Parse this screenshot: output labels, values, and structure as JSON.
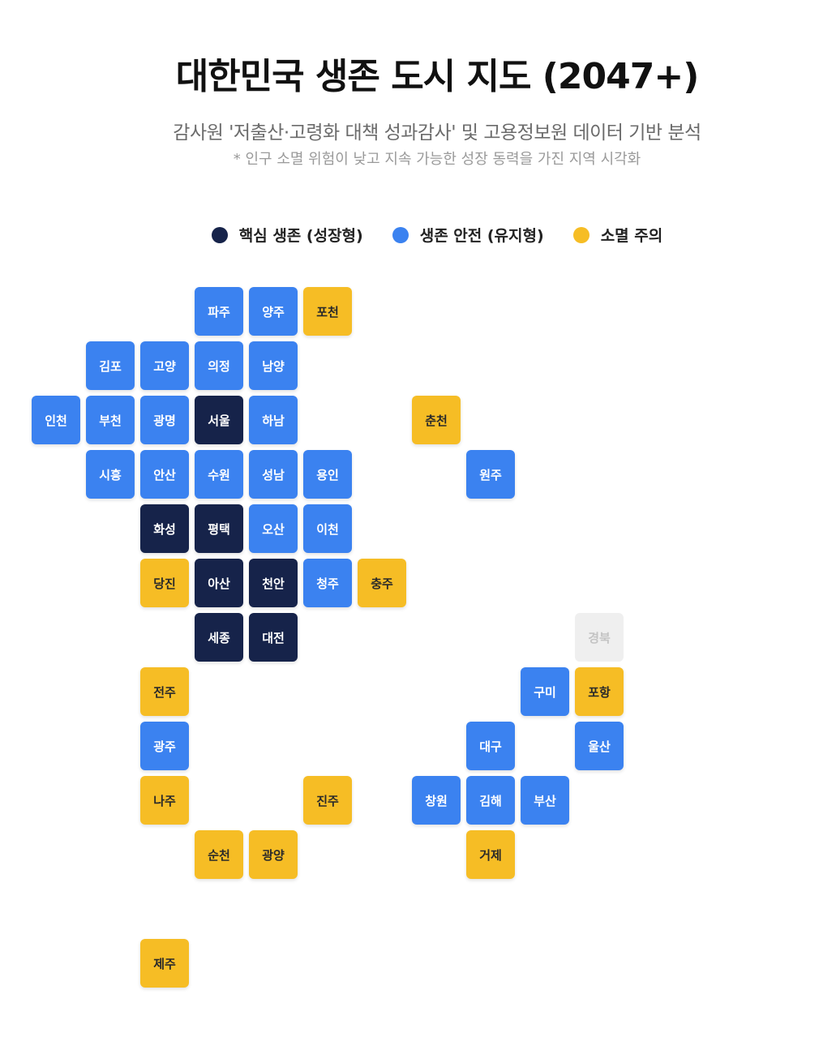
{
  "title": "대한민국 생존 도시 지도 (2047+)",
  "subtitle": "감사원 '저출산·고령화 대책 성과감사' 및 고용정보원 데이터 기반 분석",
  "note": "* 인구 소멸 위험이 낮고 지속 가능한 성장 동력을 가진 지역 시각화",
  "colors": {
    "core": "#16234a",
    "safe": "#3b82f0",
    "warn": "#f6bd25",
    "none": "#efefef"
  },
  "legend": [
    {
      "key": "core",
      "label": "핵심 생존 (성장형)"
    },
    {
      "key": "safe",
      "label": "생존 안전 (유지형)"
    },
    {
      "key": "warn",
      "label": "소멸 주의"
    }
  ],
  "tiles": [
    {
      "name": "파주",
      "col": 3,
      "row": 0,
      "status": "safe"
    },
    {
      "name": "양주",
      "col": 4,
      "row": 0,
      "status": "safe"
    },
    {
      "name": "포천",
      "col": 5,
      "row": 0,
      "status": "warn"
    },
    {
      "name": "김포",
      "col": 1,
      "row": 1,
      "status": "safe"
    },
    {
      "name": "고양",
      "col": 2,
      "row": 1,
      "status": "safe"
    },
    {
      "name": "의정",
      "col": 3,
      "row": 1,
      "status": "safe"
    },
    {
      "name": "남양",
      "col": 4,
      "row": 1,
      "status": "safe"
    },
    {
      "name": "인천",
      "col": 0,
      "row": 2,
      "status": "safe"
    },
    {
      "name": "부천",
      "col": 1,
      "row": 2,
      "status": "safe"
    },
    {
      "name": "광명",
      "col": 2,
      "row": 2,
      "status": "safe"
    },
    {
      "name": "서울",
      "col": 3,
      "row": 2,
      "status": "core"
    },
    {
      "name": "하남",
      "col": 4,
      "row": 2,
      "status": "safe"
    },
    {
      "name": "춘천",
      "col": 7,
      "row": 2,
      "status": "warn"
    },
    {
      "name": "시흥",
      "col": 1,
      "row": 3,
      "status": "safe"
    },
    {
      "name": "안산",
      "col": 2,
      "row": 3,
      "status": "safe"
    },
    {
      "name": "수원",
      "col": 3,
      "row": 3,
      "status": "safe"
    },
    {
      "name": "성남",
      "col": 4,
      "row": 3,
      "status": "safe"
    },
    {
      "name": "용인",
      "col": 5,
      "row": 3,
      "status": "safe"
    },
    {
      "name": "원주",
      "col": 8,
      "row": 3,
      "status": "safe"
    },
    {
      "name": "화성",
      "col": 2,
      "row": 4,
      "status": "core"
    },
    {
      "name": "평택",
      "col": 3,
      "row": 4,
      "status": "core"
    },
    {
      "name": "오산",
      "col": 4,
      "row": 4,
      "status": "safe"
    },
    {
      "name": "이천",
      "col": 5,
      "row": 4,
      "status": "safe"
    },
    {
      "name": "당진",
      "col": 2,
      "row": 5,
      "status": "warn"
    },
    {
      "name": "아산",
      "col": 3,
      "row": 5,
      "status": "core"
    },
    {
      "name": "천안",
      "col": 4,
      "row": 5,
      "status": "core"
    },
    {
      "name": "청주",
      "col": 5,
      "row": 5,
      "status": "safe"
    },
    {
      "name": "충주",
      "col": 6,
      "row": 5,
      "status": "warn"
    },
    {
      "name": "세종",
      "col": 3,
      "row": 6,
      "status": "core"
    },
    {
      "name": "대전",
      "col": 4,
      "row": 6,
      "status": "core"
    },
    {
      "name": "경북",
      "col": 10,
      "row": 6,
      "status": "none"
    },
    {
      "name": "전주",
      "col": 2,
      "row": 7,
      "status": "warn"
    },
    {
      "name": "구미",
      "col": 9,
      "row": 7,
      "status": "safe"
    },
    {
      "name": "포항",
      "col": 10,
      "row": 7,
      "status": "warn"
    },
    {
      "name": "광주",
      "col": 2,
      "row": 8,
      "status": "safe"
    },
    {
      "name": "대구",
      "col": 8,
      "row": 8,
      "status": "safe"
    },
    {
      "name": "울산",
      "col": 10,
      "row": 8,
      "status": "safe"
    },
    {
      "name": "나주",
      "col": 2,
      "row": 9,
      "status": "warn"
    },
    {
      "name": "진주",
      "col": 5,
      "row": 9,
      "status": "warn"
    },
    {
      "name": "창원",
      "col": 7,
      "row": 9,
      "status": "safe"
    },
    {
      "name": "김해",
      "col": 8,
      "row": 9,
      "status": "safe"
    },
    {
      "name": "부산",
      "col": 9,
      "row": 9,
      "status": "safe"
    },
    {
      "name": "순천",
      "col": 3,
      "row": 10,
      "status": "warn"
    },
    {
      "name": "광양",
      "col": 4,
      "row": 10,
      "status": "warn"
    },
    {
      "name": "거제",
      "col": 8,
      "row": 10,
      "status": "warn"
    },
    {
      "name": "제주",
      "col": 2,
      "row": 12,
      "status": "warn"
    }
  ]
}
